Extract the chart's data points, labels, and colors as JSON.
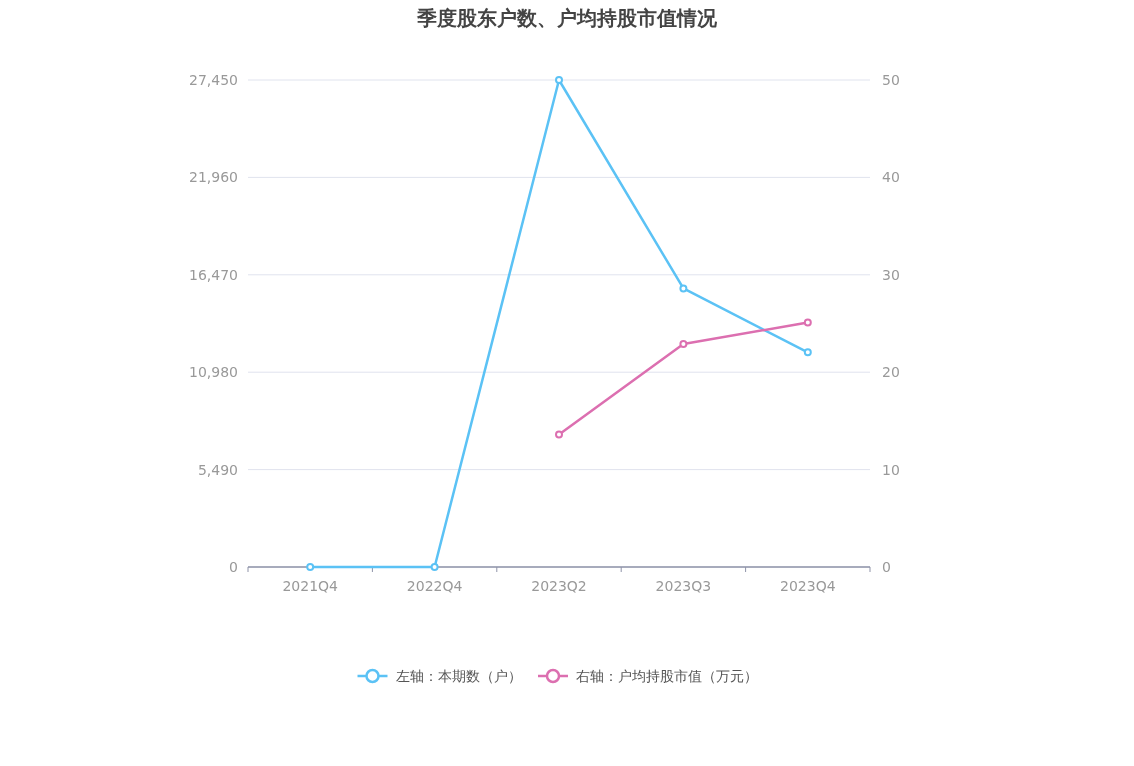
{
  "chart_data": {
    "type": "line",
    "title": "季度股东户数、户均持股市值情况",
    "categories": [
      "2021Q4",
      "2022Q4",
      "2023Q2",
      "2023Q3",
      "2023Q4"
    ],
    "series": [
      {
        "name": "左轴：本期数（户）",
        "color": "#5bc2f5",
        "values": [
          0,
          0,
          27450,
          15700,
          12100
        ]
      },
      {
        "name": "右轴：户均持股市值（万元）",
        "color": "#dc6fb0",
        "axis": "y2",
        "values": [
          null,
          null,
          13.6,
          22.9,
          25.1
        ]
      }
    ],
    "ylim": [
      0,
      27450
    ],
    "yticks": [
      0,
      {
        "value": 5490,
        "label": "5,490"
      },
      {
        "value": 10980,
        "label": "10,980"
      },
      {
        "value": 16470,
        "label": "16,470"
      },
      {
        "value": 21960,
        "label": "21,960"
      },
      {
        "value": 27450,
        "label": "27,450"
      }
    ],
    "y2lim": [
      0,
      50
    ],
    "y2ticks": [
      0,
      10,
      20,
      30,
      40,
      50
    ],
    "grid": "y",
    "legend": "bottom",
    "marker": "circle"
  }
}
